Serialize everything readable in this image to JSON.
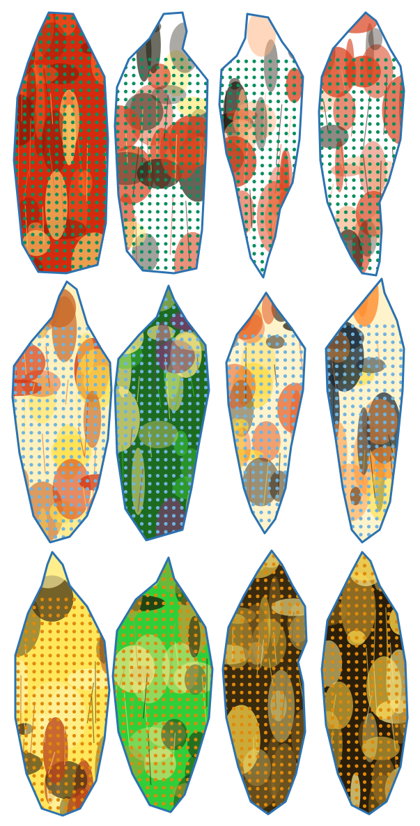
{
  "figure": {
    "description_name": "specimen-grid",
    "outline_color": "#2b72b0",
    "rows": [
      {
        "name": "row-red",
        "dot_color": "#0a8f5e",
        "specimens": [
          {
            "name": "specimen-1-1",
            "base": "#d62a0e",
            "accents": [
              "#8b1a07",
              "#ff6a2a",
              "#f5d26b"
            ],
            "light": false
          },
          {
            "name": "specimen-1-2",
            "base": "#ffffff",
            "accents": [
              "#ffe97a",
              "#2c2a1c",
              "#d9421e"
            ],
            "light": true
          },
          {
            "name": "specimen-1-3",
            "base": "#ffffff",
            "accents": [
              "#d9421e",
              "#1a1208",
              "#ffb07a"
            ],
            "light": true
          },
          {
            "name": "specimen-1-4",
            "base": "#ffffff",
            "accents": [
              "#d9421e",
              "#2a1a10",
              "#f4a470"
            ],
            "light": true
          }
        ]
      },
      {
        "name": "row-orange",
        "dot_color": "#6fb4e0",
        "specimens": [
          {
            "name": "specimen-2-1",
            "base": "#fff1bd",
            "accents": [
              "#d1300f",
              "#ffe14a",
              "#c86a2a"
            ],
            "light": true
          },
          {
            "name": "specimen-2-2",
            "base": "#1d6b1f",
            "accents": [
              "#3acb3a",
              "#7a3a6e",
              "#ffe98a"
            ],
            "light": false
          },
          {
            "name": "specimen-2-3",
            "base": "#fff3cc",
            "accents": [
              "#ffd83a",
              "#e4561f",
              "#2a1f12"
            ],
            "light": true
          },
          {
            "name": "specimen-2-4",
            "base": "#fff3cc",
            "accents": [
              "#ff8a2a",
              "#1a2a3a",
              "#ffe04a"
            ],
            "light": true
          }
        ]
      },
      {
        "name": "row-yellow",
        "dot_color": "#e08a0a",
        "specimens": [
          {
            "name": "specimen-3-1",
            "base": "#ffe65a",
            "accents": [
              "#fff3a8",
              "#b8421a",
              "#3a2a12"
            ],
            "light": true
          },
          {
            "name": "specimen-3-2",
            "base": "#2fcf3a",
            "accents": [
              "#1a1208",
              "#c79a3a",
              "#ffe68a"
            ],
            "light": false
          },
          {
            "name": "specimen-3-3",
            "base": "#3a2a0e",
            "accents": [
              "#ffd84a",
              "#8a6a2a",
              "#f5e48a"
            ],
            "light": false
          },
          {
            "name": "specimen-3-4",
            "base": "#2a1e0a",
            "accents": [
              "#ffd84a",
              "#a8802a",
              "#f8e68a"
            ],
            "light": false
          }
        ]
      }
    ]
  }
}
